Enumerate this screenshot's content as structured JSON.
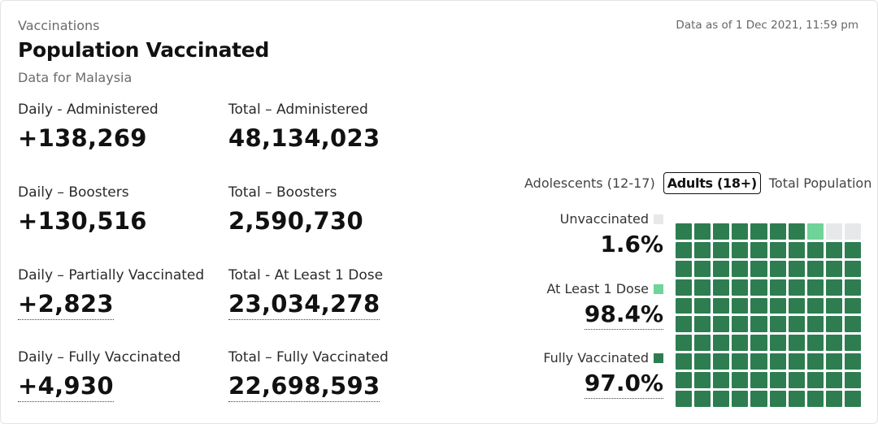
{
  "header": {
    "section": "Vaccinations",
    "title": "Population Vaccinated",
    "subtitle": "Data for Malaysia",
    "as_of": "Data as of 1 Dec 2021, 11:59 pm"
  },
  "stats": [
    {
      "label": "Daily - Administered",
      "value": "+138,269"
    },
    {
      "label": "Total – Administered",
      "value": "48,134,023"
    },
    {
      "label": "Daily – Boosters",
      "value": "+130,516"
    },
    {
      "label": "Total – Boosters",
      "value": "2,590,730"
    },
    {
      "label": "Daily – Partially Vaccinated",
      "value": "+2,823"
    },
    {
      "label": "Total - At Least 1 Dose",
      "value": "23,034,278"
    },
    {
      "label": "Daily – Fully Vaccinated",
      "value": "+4,930"
    },
    {
      "label": "Total – Fully Vaccinated",
      "value": "22,698,593"
    }
  ],
  "tabs": [
    {
      "label": "Adolescents (12-17)",
      "active": false
    },
    {
      "label": "Adults (18+)",
      "active": true
    },
    {
      "label": "Total Population",
      "active": false
    }
  ],
  "legend": [
    {
      "label": "Unvaccinated",
      "pct": "1.6%",
      "color": "#e6e8ea"
    },
    {
      "label": "At Least 1 Dose",
      "pct": "98.4%",
      "color": "#6fd39a"
    },
    {
      "label": "Fully Vaccinated",
      "pct": "97.0%",
      "color": "#2e7d50"
    }
  ],
  "waffle": {
    "total_cells": 100,
    "fully_vaccinated_cells": 97,
    "partial_cells": 1,
    "unvaccinated_cells": 2
  }
}
